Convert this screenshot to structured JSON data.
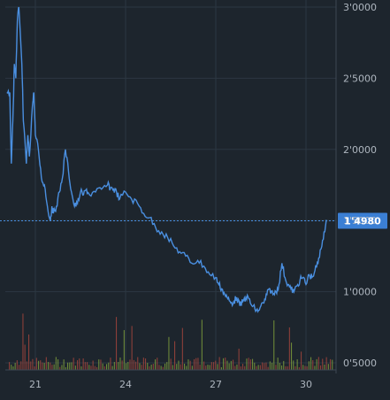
{
  "chart_data": {
    "type": "line",
    "title": "",
    "xlabel": "",
    "ylabel": "",
    "x_ticks": [
      "21",
      "24",
      "27",
      "30"
    ],
    "y_ticks": [
      "0'5000",
      "1'0000",
      "1'5000",
      "2'0000",
      "2'5000",
      "3'0000"
    ],
    "ylim": [
      0.45,
      3.0
    ],
    "xlim": [
      20.0,
      31.0
    ],
    "grid": true,
    "current_value": 1.498,
    "current_label": "1'4980",
    "series": [
      {
        "color": "#4a8fe0",
        "x": [
          20.05,
          20.15,
          20.2,
          20.25,
          20.3,
          20.35,
          20.4,
          20.45,
          20.55,
          20.6,
          20.7,
          20.75,
          20.8,
          20.9,
          20.95,
          21.0,
          21.1,
          21.2,
          21.3,
          21.4,
          21.5,
          21.55,
          21.6,
          21.7,
          21.8,
          21.9,
          22.0,
          22.1,
          22.2,
          22.3,
          22.4,
          22.5,
          22.6,
          22.7,
          22.8,
          23.0,
          23.2,
          23.4,
          23.5,
          23.6,
          23.7,
          23.8,
          24.0,
          24.2,
          24.4,
          24.6,
          24.8,
          25.0,
          25.2,
          25.4,
          25.6,
          25.8,
          26.0,
          26.2,
          26.4,
          26.6,
          26.8,
          27.0,
          27.1,
          27.2,
          27.3,
          27.4,
          27.5,
          27.6,
          27.7,
          27.8,
          27.9,
          28.0,
          28.1,
          28.2,
          28.3,
          28.4,
          28.5,
          28.6,
          28.7,
          28.8,
          28.9,
          29.0,
          29.1,
          29.2,
          29.3,
          29.4,
          29.5,
          29.6,
          29.7,
          29.8,
          29.9,
          30.0,
          30.1,
          30.2,
          30.3,
          30.4,
          30.5,
          30.6,
          30.7
        ],
        "y": [
          2.4,
          2.4,
          1.9,
          2.2,
          2.6,
          2.5,
          2.9,
          3.0,
          2.6,
          2.2,
          1.9,
          2.1,
          1.95,
          2.3,
          2.4,
          2.1,
          2.0,
          1.8,
          1.75,
          1.6,
          1.5,
          1.6,
          1.55,
          1.6,
          1.7,
          1.8,
          2.0,
          1.85,
          1.7,
          1.6,
          1.62,
          1.7,
          1.68,
          1.72,
          1.68,
          1.7,
          1.72,
          1.75,
          1.73,
          1.72,
          1.7,
          1.65,
          1.7,
          1.65,
          1.62,
          1.55,
          1.52,
          1.45,
          1.42,
          1.38,
          1.32,
          1.28,
          1.25,
          1.2,
          1.22,
          1.18,
          1.12,
          1.1,
          1.05,
          1.02,
          0.98,
          0.95,
          0.92,
          0.93,
          0.96,
          0.9,
          0.93,
          0.96,
          0.95,
          0.9,
          0.88,
          0.86,
          0.9,
          0.92,
          0.98,
          1.02,
          0.98,
          1.0,
          1.05,
          1.2,
          1.1,
          1.05,
          1.02,
          1.0,
          1.04,
          1.08,
          1.1,
          1.05,
          1.12,
          1.1,
          1.15,
          1.2,
          1.3,
          1.42,
          1.498
        ]
      }
    ]
  }
}
